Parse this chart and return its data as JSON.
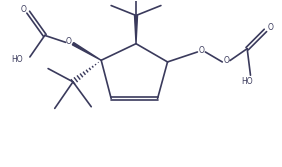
{
  "bg_color": "#ffffff",
  "line_color": "#3a3a5c",
  "line_width": 1.2,
  "figsize": [
    2.82,
    1.67
  ],
  "dpi": 100,
  "xlim": [
    0,
    8.5
  ],
  "ylim": [
    0,
    5.0
  ]
}
